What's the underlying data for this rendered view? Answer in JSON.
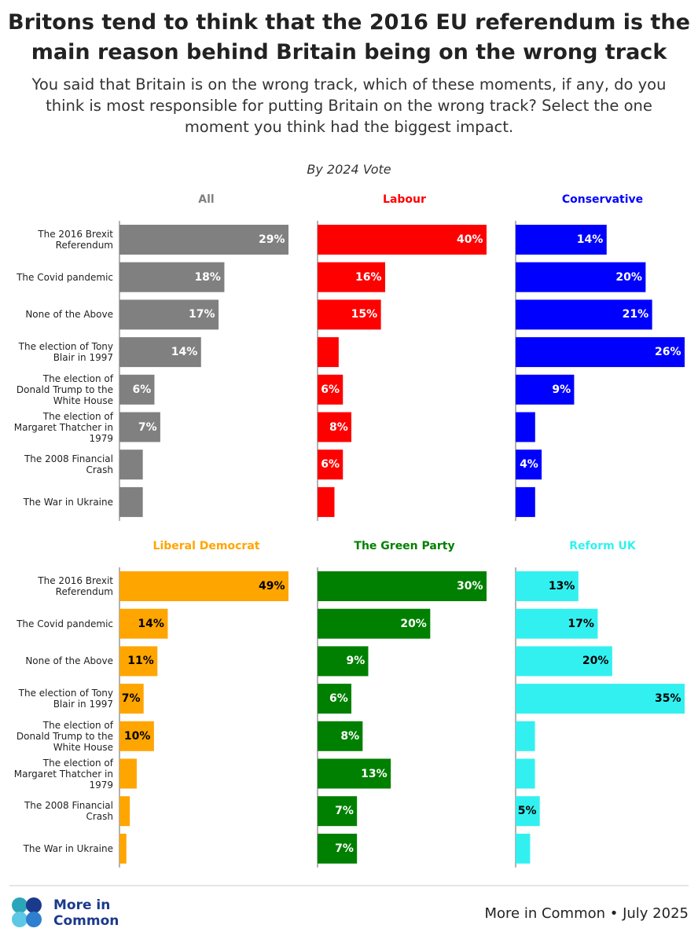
{
  "chart_data": {
    "type": "bar",
    "title": "Britons tend to think that the 2016 EU referendum is the main reason behind Britain being on the wrong track",
    "subtitle": "You said that Britain is on the wrong track, which of these moments, if any, do you think is most responsible for putting Britain on the wrong track? Select the one moment you think had the biggest impact.",
    "group_label": "By 2024 Vote",
    "categories": [
      "The 2016 Brexit Referendum",
      "The Covid pandemic",
      "None of the Above",
      "The election of Tony Blair in 1997",
      "The election of Donald Trump to the White House",
      "The election of Margaret Thatcher in 1979",
      "The 2008 Financial Crash",
      "The War in Ukraine"
    ],
    "series": [
      {
        "name": "All",
        "color": "#808080",
        "label_color": "#ffffff",
        "xlim": [
          0,
          29
        ],
        "values": [
          29,
          18,
          17,
          14,
          6,
          7,
          4,
          4
        ],
        "value_labels": [
          "29%",
          "18%",
          "17%",
          "14%",
          "6%",
          "7%",
          null,
          null
        ]
      },
      {
        "name": "Labour",
        "color": "#ff0000",
        "label_color": "#ffffff",
        "xlim": [
          0,
          40
        ],
        "values": [
          40,
          16,
          15,
          5,
          6,
          8,
          6,
          4
        ],
        "value_labels": [
          "40%",
          "16%",
          "15%",
          null,
          "6%",
          "8%",
          "6%",
          null
        ]
      },
      {
        "name": "Conservative",
        "color": "#0000ff",
        "label_color": "#ffffff",
        "xlim": [
          0,
          26
        ],
        "values": [
          14,
          20,
          21,
          26,
          9,
          3,
          4,
          3
        ],
        "value_labels": [
          "14%",
          "20%",
          "21%",
          "26%",
          "9%",
          null,
          "4%",
          null
        ]
      },
      {
        "name": "Liberal Democrat",
        "color": "#ffa500",
        "label_color": "#000000",
        "xlim": [
          0,
          49
        ],
        "values": [
          49,
          14,
          11,
          7,
          10,
          5,
          3,
          2
        ],
        "value_labels": [
          "49%",
          "14%",
          "11%",
          "7%",
          "10%",
          null,
          null,
          null
        ]
      },
      {
        "name": "The Green Party",
        "color": "#008000",
        "label_color": "#ffffff",
        "xlim": [
          0,
          30
        ],
        "values": [
          30,
          20,
          9,
          6,
          8,
          13,
          7,
          7
        ],
        "value_labels": [
          "30%",
          "20%",
          "9%",
          "6%",
          "8%",
          "13%",
          "7%",
          "7%"
        ]
      },
      {
        "name": "Reform UK",
        "color": "#33f0f0",
        "label_color": "#000000",
        "xlim": [
          0,
          35
        ],
        "values": [
          13,
          17,
          20,
          35,
          4,
          4,
          5,
          3
        ],
        "value_labels": [
          "13%",
          "17%",
          "20%",
          "35%",
          null,
          null,
          "5%",
          null
        ]
      }
    ],
    "logo_text": [
      "More in",
      "Common"
    ],
    "source": "More in Common • July 2025"
  }
}
